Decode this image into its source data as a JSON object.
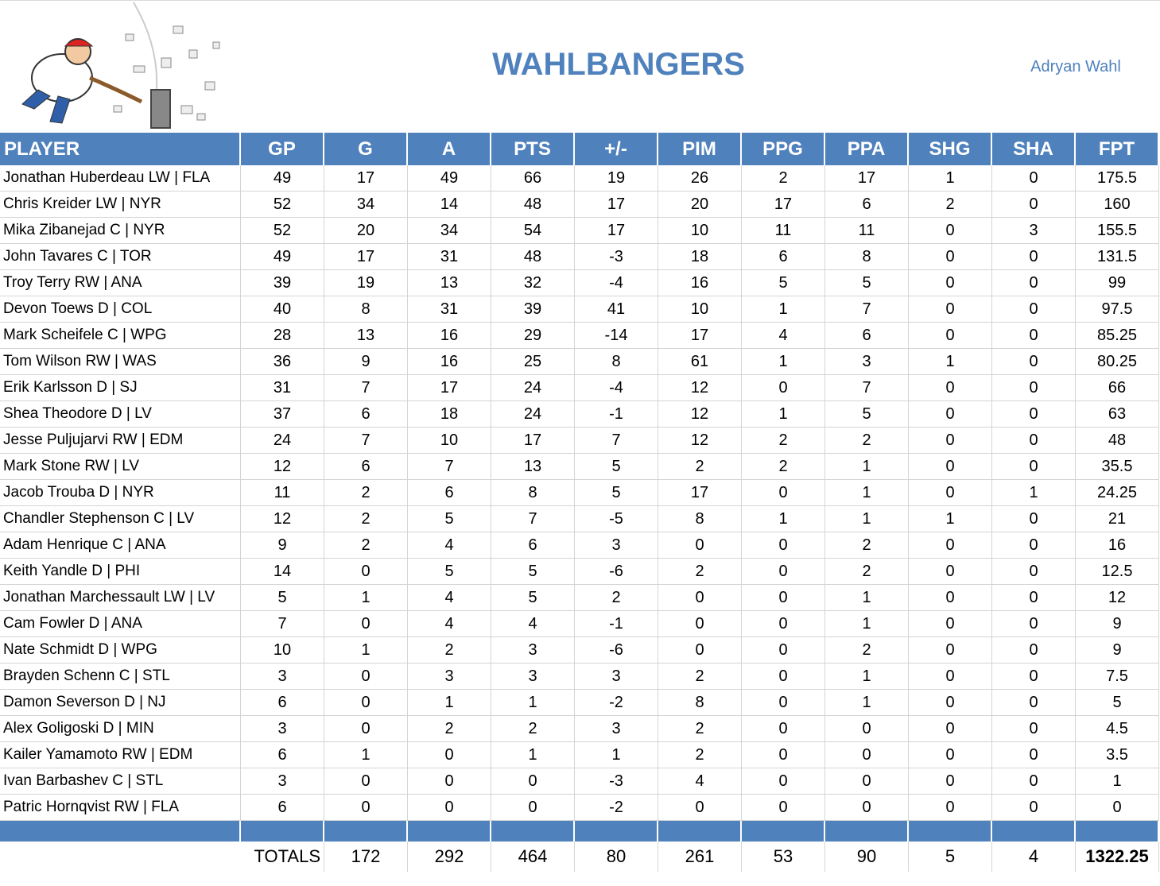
{
  "header": {
    "title": "WAHLBANGERS",
    "owner": "Adryan Wahl"
  },
  "table": {
    "columns": [
      "PLAYER",
      "GP",
      "G",
      "A",
      "PTS",
      "+/-",
      "PIM",
      "PPG",
      "PPA",
      "SHG",
      "SHA",
      "FPT"
    ],
    "rows": [
      [
        "Jonathan Huberdeau LW | FLA",
        49,
        17,
        49,
        66,
        19,
        26,
        2,
        17,
        1,
        0,
        175.5
      ],
      [
        "Chris Kreider LW | NYR",
        52,
        34,
        14,
        48,
        17,
        20,
        17,
        6,
        2,
        0,
        160
      ],
      [
        "Mika Zibanejad C | NYR",
        52,
        20,
        34,
        54,
        17,
        10,
        11,
        11,
        0,
        3,
        155.5
      ],
      [
        "John Tavares C | TOR",
        49,
        17,
        31,
        48,
        -3,
        18,
        6,
        8,
        0,
        0,
        131.5
      ],
      [
        "Troy Terry RW | ANA",
        39,
        19,
        13,
        32,
        -4,
        16,
        5,
        5,
        0,
        0,
        99
      ],
      [
        "Devon Toews D | COL",
        40,
        8,
        31,
        39,
        41,
        10,
        1,
        7,
        0,
        0,
        97.5
      ],
      [
        "Mark Scheifele C | WPG",
        28,
        13,
        16,
        29,
        -14,
        17,
        4,
        6,
        0,
        0,
        85.25
      ],
      [
        "Tom Wilson RW | WAS",
        36,
        9,
        16,
        25,
        8,
        61,
        1,
        3,
        1,
        0,
        80.25
      ],
      [
        "Erik Karlsson D | SJ",
        31,
        7,
        17,
        24,
        -4,
        12,
        0,
        7,
        0,
        0,
        66
      ],
      [
        "Shea Theodore D | LV",
        37,
        6,
        18,
        24,
        -1,
        12,
        1,
        5,
        0,
        0,
        63
      ],
      [
        "Jesse Puljujarvi RW | EDM",
        24,
        7,
        10,
        17,
        7,
        12,
        2,
        2,
        0,
        0,
        48
      ],
      [
        "Mark Stone RW | LV",
        12,
        6,
        7,
        13,
        5,
        2,
        2,
        1,
        0,
        0,
        35.5
      ],
      [
        "Jacob Trouba D | NYR",
        11,
        2,
        6,
        8,
        5,
        17,
        0,
        1,
        0,
        1,
        24.25
      ],
      [
        "Chandler Stephenson C | LV",
        12,
        2,
        5,
        7,
        -5,
        8,
        1,
        1,
        1,
        0,
        21
      ],
      [
        "Adam Henrique C | ANA",
        9,
        2,
        4,
        6,
        3,
        0,
        0,
        2,
        0,
        0,
        16
      ],
      [
        "Keith Yandle D | PHI",
        14,
        0,
        5,
        5,
        -6,
        2,
        0,
        2,
        0,
        0,
        12.5
      ],
      [
        "Jonathan Marchessault LW | LV",
        5,
        1,
        4,
        5,
        2,
        0,
        0,
        1,
        0,
        0,
        12
      ],
      [
        "Cam Fowler D | ANA",
        7,
        0,
        4,
        4,
        -1,
        0,
        0,
        1,
        0,
        0,
        9
      ],
      [
        "Nate Schmidt D | WPG",
        10,
        1,
        2,
        3,
        -6,
        0,
        0,
        2,
        0,
        0,
        9
      ],
      [
        "Brayden Schenn C | STL",
        3,
        0,
        3,
        3,
        3,
        2,
        0,
        1,
        0,
        0,
        7.5
      ],
      [
        "Damon Severson D | NJ",
        6,
        0,
        1,
        1,
        -2,
        8,
        0,
        1,
        0,
        0,
        5
      ],
      [
        "Alex Goligoski D | MIN",
        3,
        0,
        2,
        2,
        3,
        2,
        0,
        0,
        0,
        0,
        4.5
      ],
      [
        "Kailer Yamamoto RW | EDM",
        6,
        1,
        0,
        1,
        1,
        2,
        0,
        0,
        0,
        0,
        3.5
      ],
      [
        "Ivan Barbashev C | STL",
        3,
        0,
        0,
        0,
        -3,
        4,
        0,
        0,
        0,
        0,
        1
      ],
      [
        "Patric Hornqvist RW | FLA",
        6,
        0,
        0,
        0,
        -2,
        0,
        0,
        0,
        0,
        0,
        0
      ]
    ],
    "totals": {
      "label": "TOTALS",
      "values": [
        172,
        292,
        464,
        80,
        261,
        53,
        90,
        5,
        4,
        1322.25
      ]
    }
  }
}
